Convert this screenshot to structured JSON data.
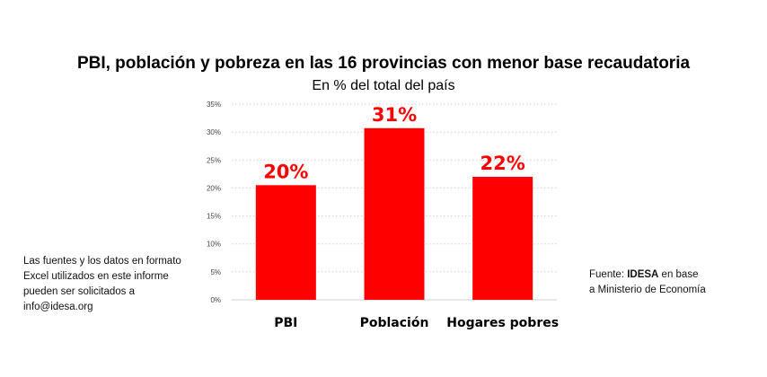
{
  "chart_data": {
    "type": "bar",
    "title": "PBI, población y pobreza en las 16 provincias con menor base recaudatoria",
    "subtitle": "En % del total del país",
    "categories": [
      "PBI",
      "Población",
      "Hogares pobres"
    ],
    "values": [
      20.5,
      30.7,
      22.0
    ],
    "data_labels": [
      "20%",
      "31%",
      "22%"
    ],
    "yticks": [
      "0%",
      "5%",
      "10%",
      "15%",
      "20%",
      "25%",
      "30%",
      "35%"
    ],
    "ylim": [
      0,
      35
    ],
    "grid": true,
    "bar_color": "#ff0000",
    "label_color": "#ff0000",
    "xlabel": "",
    "ylabel": ""
  },
  "notes": {
    "left": "Las fuentes y los datos en formato Excel utilizados en este informe pueden ser solicitados a info@idesa.org",
    "source_prefix": "Fuente: ",
    "source_org": "IDESA",
    "source_suffix": " en base a Ministerio de Economía"
  }
}
